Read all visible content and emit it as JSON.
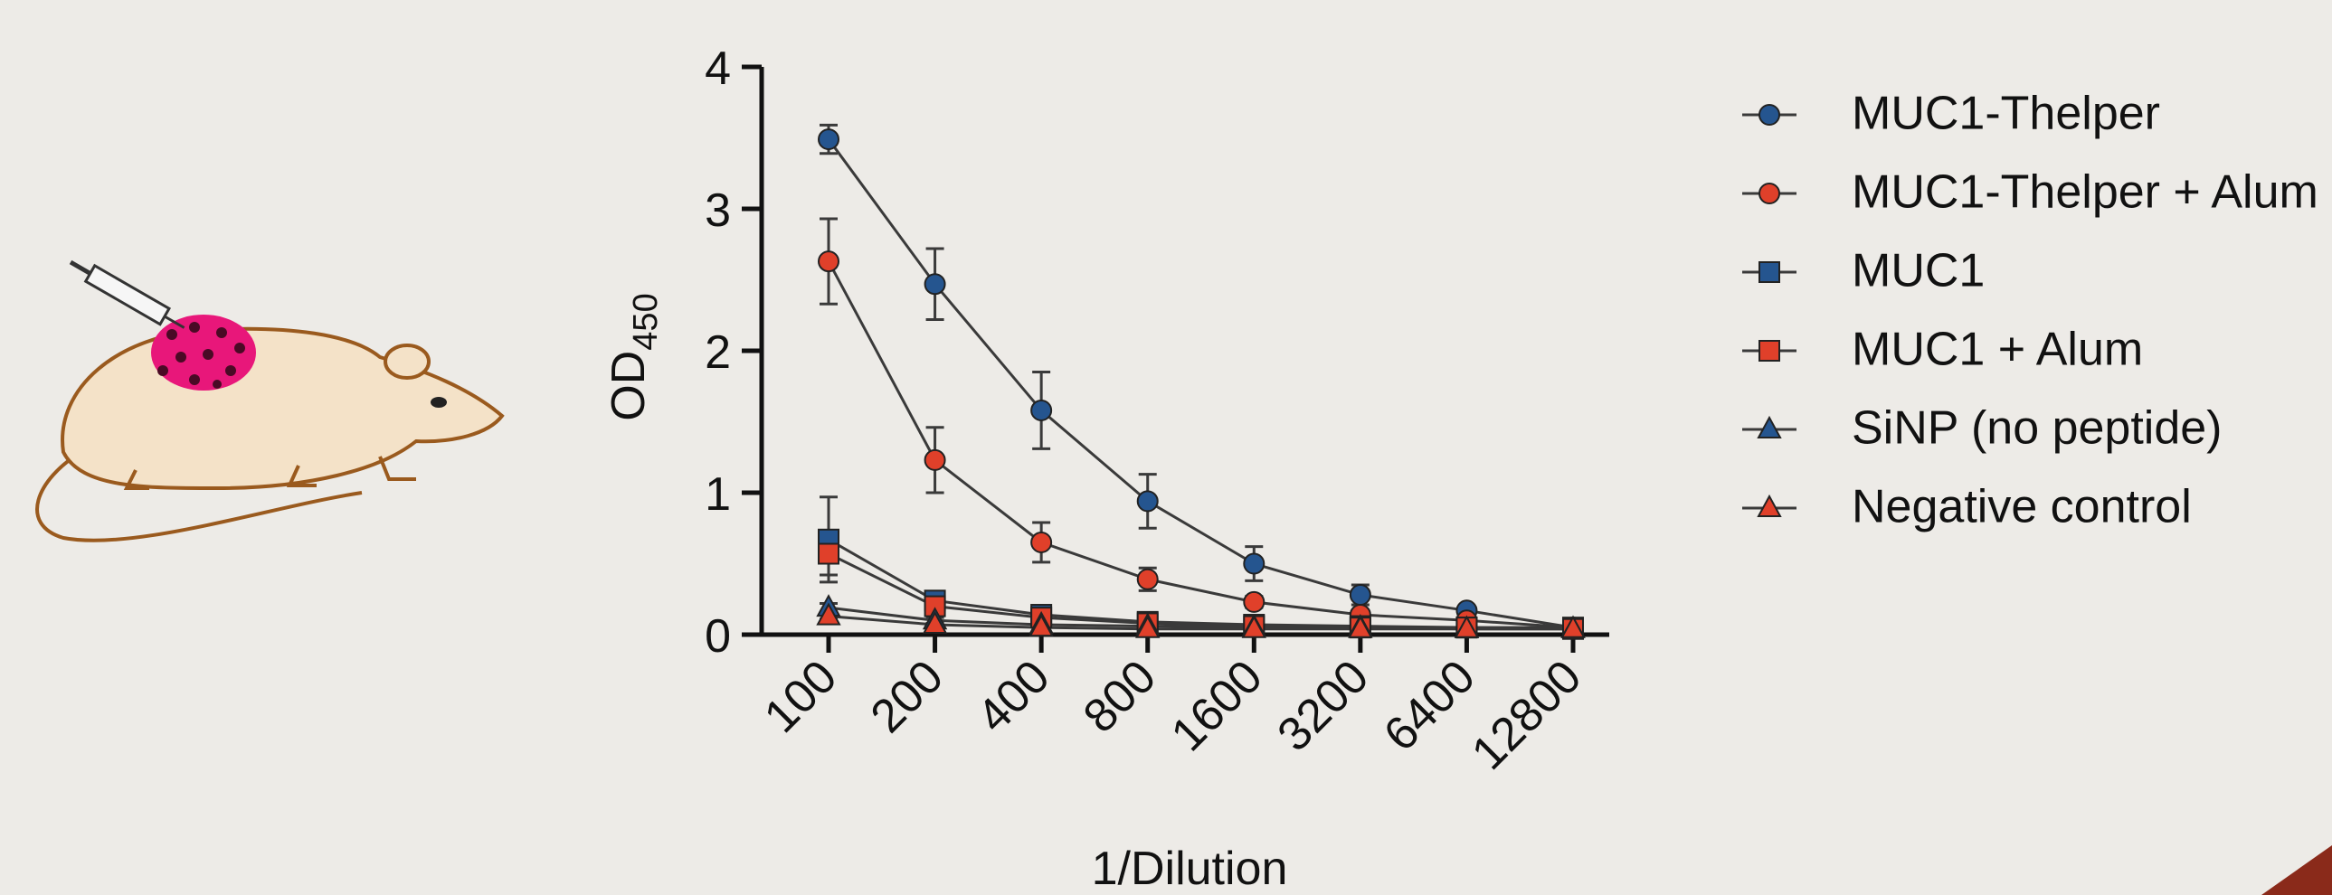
{
  "chart_data": {
    "type": "line",
    "ylabel": {
      "text": "OD",
      "subscript": "450"
    },
    "xlabel": "1/Dilution",
    "categories": [
      "100",
      "200",
      "400",
      "800",
      "1600",
      "3200",
      "6400",
      "12800"
    ],
    "ylim": [
      0,
      4
    ],
    "yticks": [
      0,
      1,
      2,
      3,
      4
    ],
    "line_color": "#3a3a3a",
    "legend": "right",
    "series": [
      {
        "name": "MUC1-Thelper",
        "color": "#25558f",
        "marker": "circle",
        "values": [
          3.49,
          2.47,
          1.58,
          0.94,
          0.5,
          0.28,
          0.17,
          0.05
        ],
        "errors": [
          0.1,
          0.25,
          0.27,
          0.19,
          0.12,
          0.07,
          0.03,
          0.02
        ]
      },
      {
        "name": "MUC1-Thelper + Alum",
        "color": "#e0402a",
        "marker": "circle",
        "values": [
          2.63,
          1.23,
          0.65,
          0.39,
          0.23,
          0.14,
          0.1,
          0.05
        ],
        "errors": [
          0.3,
          0.23,
          0.14,
          0.08,
          0.04,
          0.03,
          0.02,
          0.01
        ]
      },
      {
        "name": "MUC1",
        "color": "#25558f",
        "marker": "square",
        "values": [
          0.67,
          0.24,
          0.14,
          0.09,
          0.07,
          0.06,
          0.05,
          0.05
        ],
        "errors": [
          0.3,
          0.03,
          0.02,
          0.01,
          0.01,
          0.01,
          0.01,
          0.01
        ]
      },
      {
        "name": "MUC1 + Alum",
        "color": "#e0402a",
        "marker": "square",
        "values": [
          0.57,
          0.2,
          0.12,
          0.08,
          0.06,
          0.05,
          0.05,
          0.04
        ],
        "errors": [
          0.15,
          0.03,
          0.02,
          0.01,
          0.01,
          0.01,
          0.01,
          0.01
        ]
      },
      {
        "name": "SiNP (no peptide)",
        "color": "#25558f",
        "marker": "triangle",
        "values": [
          0.19,
          0.1,
          0.07,
          0.06,
          0.05,
          0.05,
          0.04,
          0.04
        ],
        "errors": [
          0.03,
          0.02,
          0.01,
          0.01,
          0.01,
          0.01,
          0.01,
          0.01
        ]
      },
      {
        "name": "Negative control",
        "color": "#e0402a",
        "marker": "triangle",
        "values": [
          0.13,
          0.07,
          0.05,
          0.04,
          0.04,
          0.04,
          0.04,
          0.04
        ],
        "errors": [
          0.02,
          0.01,
          0.01,
          0.01,
          0.01,
          0.01,
          0.01,
          0.01
        ]
      }
    ]
  }
}
